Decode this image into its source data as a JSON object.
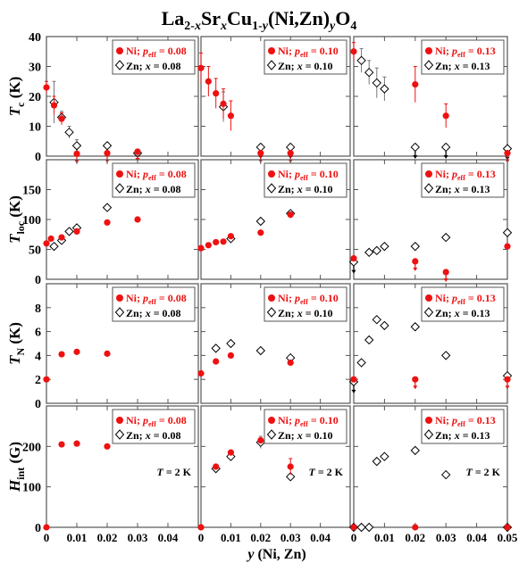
{
  "title_parts": {
    "base": "La",
    "s1": "2-",
    "s2": "x",
    "m1": "Sr",
    "s3": "x",
    "m2": "Cu",
    "s4": "1-",
    "s5": "y",
    "m3": "(Ni,Zn)",
    "s6": "y",
    "m4": "O",
    "s7": "4"
  },
  "colors": {
    "ni": "#ee1111",
    "zn": "#000000",
    "frame": "#555555"
  },
  "chart_data": {
    "type": "scatter",
    "xlabel": "y (Ni, Zn)",
    "x_ticks": [
      "0",
      "0.01",
      "0.02",
      "0.03",
      "0.04",
      "0.05"
    ],
    "x_tick_values": [
      0,
      0.01,
      0.02,
      0.03,
      0.04,
      0.05
    ],
    "xlim": [
      0,
      0.05
    ],
    "columns": [
      {
        "ni_label": "Ni; p",
        "ni_sub": "eff",
        "ni_val": " = 0.08",
        "zn_label": "Zn; ",
        "zn_var": "x",
        "zn_val": " = 0.08"
      },
      {
        "ni_label": "Ni; p",
        "ni_sub": "eff",
        "ni_val": " = 0.10",
        "zn_label": "Zn; ",
        "zn_var": "x",
        "zn_val": " = 0.10"
      },
      {
        "ni_label": "Ni; p",
        "ni_sub": "eff",
        "ni_val": " = 0.13",
        "zn_label": "Zn; ",
        "zn_var": "x",
        "zn_val": " = 0.13"
      }
    ],
    "rows": [
      {
        "ylabel": "T",
        "ylabel_sub": "c",
        "unit": "(K)",
        "ylim": [
          0,
          40
        ],
        "ticks": [
          0,
          10,
          20,
          30,
          40
        ],
        "tick_labels": [
          "0",
          "10",
          "20",
          "30",
          "40"
        ]
      },
      {
        "ylabel": "T",
        "ylabel_sub": "loc",
        "unit": "(K)",
        "ylim": [
          0,
          200
        ],
        "ticks": [
          0,
          50,
          100,
          150
        ],
        "tick_labels": [
          "0",
          "50",
          "100",
          "150"
        ]
      },
      {
        "ylabel": "T",
        "ylabel_sub": "N",
        "unit": "(K)",
        "ylim": [
          0,
          10
        ],
        "ticks": [
          0,
          2,
          4,
          6,
          8
        ],
        "tick_labels": [
          "0",
          "2",
          "4",
          "6",
          "8"
        ]
      },
      {
        "ylabel": "H",
        "ylabel_sub": "int",
        "unit": "(G)",
        "ylim": [
          0,
          300
        ],
        "ticks": [
          0,
          100,
          200
        ],
        "tick_labels": [
          "0",
          "100",
          "200"
        ],
        "note": "T = 2 K"
      }
    ],
    "panels": [
      [
        {
          "ni": [
            [
              0,
              23,
              2
            ],
            [
              0.0025,
              17,
              3
            ],
            [
              0.005,
              12.5,
              2
            ],
            [
              0.01,
              0.8,
              0
            ],
            [
              0.02,
              1,
              0
            ],
            [
              0.03,
              1.5,
              0
            ]
          ],
          "zn": [
            [
              0.0025,
              18,
              7
            ],
            [
              0.005,
              13,
              2
            ],
            [
              0.0075,
              8,
              2
            ],
            [
              0.01,
              3.5,
              2
            ],
            [
              0.02,
              3.5,
              1
            ],
            [
              0.03,
              1,
              0
            ]
          ],
          "ni_arrows": [
            0.01,
            0.02,
            0.03
          ],
          "zn_arrows": [
            0.01,
            0.02
          ]
        },
        {
          "ni": [
            [
              0,
              29.5,
              5
            ],
            [
              0.0025,
              25,
              5
            ],
            [
              0.005,
              21,
              5
            ],
            [
              0.0075,
              17.5,
              5
            ],
            [
              0.01,
              13.5,
              5
            ],
            [
              0.02,
              1,
              0
            ],
            [
              0.03,
              1,
              0
            ]
          ],
          "zn": [
            [
              0.0075,
              16.5,
              5
            ],
            [
              0.02,
              3,
              1
            ],
            [
              0.03,
              3,
              1
            ]
          ],
          "ni_arrows": [
            0.02,
            0.03
          ],
          "zn_arrows": [
            0.02,
            0.03
          ]
        },
        {
          "ni": [
            [
              0,
              35,
              3
            ],
            [
              0.02,
              24,
              6
            ],
            [
              0.03,
              13.5,
              4
            ],
            [
              0.05,
              1,
              0
            ]
          ],
          "zn": [
            [
              0.0025,
              32,
              4
            ],
            [
              0.005,
              28,
              4
            ],
            [
              0.0075,
              24.5,
              5
            ],
            [
              0.01,
              22.5,
              4
            ],
            [
              0.02,
              3,
              1
            ],
            [
              0.03,
              3,
              1
            ],
            [
              0.05,
              2.5,
              0
            ]
          ],
          "ni_arrows": [
            0.05
          ],
          "zn_arrows": [
            0.02,
            0.03,
            0.05
          ]
        }
      ],
      [
        {
          "ni": [
            [
              0,
              60,
              0
            ],
            [
              0.0015,
              68,
              0
            ],
            [
              0.005,
              70,
              0
            ],
            [
              0.01,
              80,
              0
            ],
            [
              0.02,
              95,
              0
            ],
            [
              0.03,
              100,
              0
            ]
          ],
          "zn": [
            [
              0.0025,
              55,
              0
            ],
            [
              0.005,
              65,
              0
            ],
            [
              0.0075,
              80,
              0
            ],
            [
              0.01,
              86,
              0
            ],
            [
              0.02,
              120,
              0
            ]
          ],
          "ni_arrows": [],
          "zn_arrows": []
        },
        {
          "ni": [
            [
              0,
              52,
              0
            ],
            [
              0.0025,
              57,
              0
            ],
            [
              0.005,
              62,
              0
            ],
            [
              0.0075,
              63,
              0
            ],
            [
              0.01,
              72,
              0
            ],
            [
              0.02,
              78,
              0
            ],
            [
              0.03,
              108,
              0
            ]
          ],
          "zn": [
            [
              0.01,
              68,
              0
            ],
            [
              0.02,
              97,
              0
            ],
            [
              0.03,
              110,
              0
            ]
          ],
          "ni_arrows": [],
          "zn_arrows": []
        },
        {
          "ni": [
            [
              0,
              35,
              0
            ],
            [
              0.02,
              30,
              0
            ],
            [
              0.03,
              12,
              0
            ],
            [
              0.05,
              55,
              0
            ]
          ],
          "zn": [
            [
              0,
              29,
              0
            ],
            [
              0.005,
              45,
              0
            ],
            [
              0.0075,
              48,
              0
            ],
            [
              0.01,
              55,
              0
            ],
            [
              0.02,
              55,
              0
            ],
            [
              0.03,
              70,
              0
            ],
            [
              0.05,
              78,
              0
            ]
          ],
          "ni_arrows": [
            0.02,
            0.03
          ],
          "zn_arrows": [
            0
          ]
        }
      ],
      [
        {
          "ni": [
            [
              0,
              2,
              0
            ],
            [
              0.005,
              4.1,
              0
            ],
            [
              0.01,
              4.3,
              0
            ],
            [
              0.02,
              4.15,
              0
            ]
          ],
          "zn": [],
          "ni_arrows": [],
          "zn_arrows": []
        },
        {
          "ni": [
            [
              0,
              2.5,
              0
            ],
            [
              0.005,
              3.5,
              0
            ],
            [
              0.01,
              4,
              0
            ],
            [
              0.03,
              3.4,
              0
            ]
          ],
          "zn": [
            [
              0.005,
              4.6,
              0
            ],
            [
              0.01,
              5,
              0
            ],
            [
              0.02,
              4.4,
              0
            ],
            [
              0.03,
              3.8,
              0
            ]
          ],
          "ni_arrows": [],
          "zn_arrows": []
        },
        {
          "ni": [
            [
              0,
              2,
              0
            ],
            [
              0.02,
              2,
              0
            ],
            [
              0.05,
              2,
              0
            ]
          ],
          "zn": [
            [
              0,
              1.8,
              0
            ],
            [
              0.0025,
              3.4,
              0
            ],
            [
              0.005,
              5.3,
              0
            ],
            [
              0.0075,
              7,
              0
            ],
            [
              0.01,
              6.5,
              0
            ],
            [
              0.02,
              6.4,
              0
            ],
            [
              0.03,
              4,
              0
            ],
            [
              0.05,
              2.3,
              0
            ]
          ],
          "ni_arrows": [
            0.02,
            0.05
          ],
          "zn_arrows": [
            0
          ]
        }
      ],
      [
        {
          "ni": [
            [
              0,
              0,
              0
            ],
            [
              0.005,
              205,
              0
            ],
            [
              0.01,
              207,
              0
            ],
            [
              0.02,
              200,
              0
            ]
          ],
          "zn": [],
          "ni_arrows": [],
          "zn_arrows": []
        },
        {
          "ni": [
            [
              0,
              0,
              0
            ],
            [
              0.005,
              150,
              0
            ],
            [
              0.01,
              185,
              0
            ],
            [
              0.02,
              215,
              5
            ],
            [
              0.03,
              150,
              20
            ]
          ],
          "zn": [
            [
              0.005,
              145,
              0
            ],
            [
              0.01,
              175,
              0
            ],
            [
              0.02,
              210,
              15
            ],
            [
              0.03,
              125,
              0
            ]
          ],
          "ni_arrows": [],
          "zn_arrows": []
        },
        {
          "ni": [
            [
              0,
              0,
              0
            ],
            [
              0.02,
              0,
              0
            ],
            [
              0.05,
              0,
              0
            ]
          ],
          "zn": [
            [
              0,
              0,
              0
            ],
            [
              0.0025,
              0,
              0
            ],
            [
              0.005,
              0,
              0
            ],
            [
              0.0075,
              163,
              0
            ],
            [
              0.01,
              175,
              0
            ],
            [
              0.02,
              190,
              0
            ],
            [
              0.03,
              130,
              0
            ],
            [
              0.05,
              0,
              0
            ]
          ],
          "ni_arrows": [],
          "zn_arrows": []
        }
      ]
    ]
  }
}
